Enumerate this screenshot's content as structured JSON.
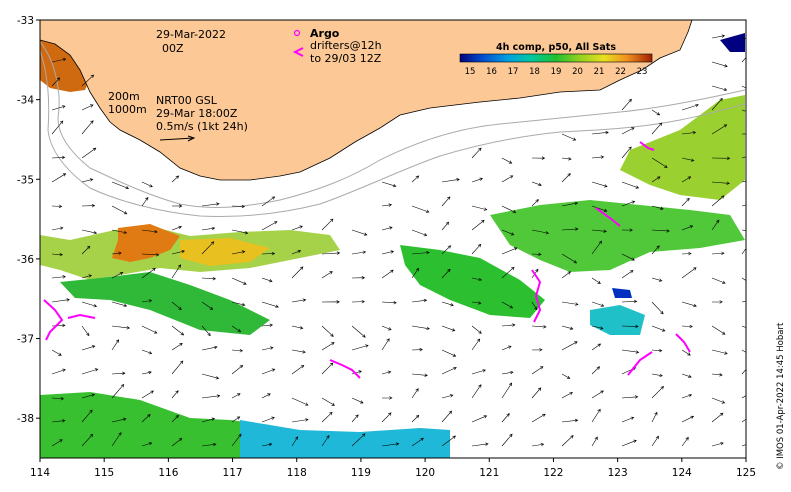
{
  "axes": {
    "x_ticks": [
      "114",
      "115",
      "116",
      "117",
      "118",
      "119",
      "120",
      "121",
      "122",
      "123",
      "124",
      "125"
    ],
    "y_ticks": [
      "-33",
      "-34",
      "-35",
      "-36",
      "-37",
      "-38"
    ],
    "xlim": [
      114,
      125
    ],
    "ylim": [
      -38.5,
      -33
    ]
  },
  "annotations": {
    "date": "29-Mar-2022",
    "time": "00Z",
    "contour_200": "200m",
    "contour_1000": "1000m",
    "current_model": "NRT00 GSL",
    "current_time": "29-Mar 18:00Z",
    "speed_scale": "0.5m/s (1kt 24h)"
  },
  "legend_argo": {
    "title": "Argo",
    "drifters": "drifters@12h",
    "to": "to 29/03 12Z",
    "symbol_color": "#ff00ff"
  },
  "colorbar": {
    "title": "4h comp, p50, All Sats",
    "ticks": [
      "15",
      "16",
      "17",
      "18",
      "19",
      "20",
      "21",
      "22",
      "23"
    ],
    "colors": [
      "#000080",
      "#0040c0",
      "#0090e0",
      "#00c8c0",
      "#20c040",
      "#80d020",
      "#e0e020",
      "#f0a020",
      "#d06010",
      "#a02000"
    ]
  },
  "credit": "© IMOS 01-Apr-2022 14:45 Hobart",
  "colors": {
    "land": "#fcc896",
    "contour": "#aaaaaa",
    "drifter": "#ff00ff",
    "arrow": "#000000"
  }
}
